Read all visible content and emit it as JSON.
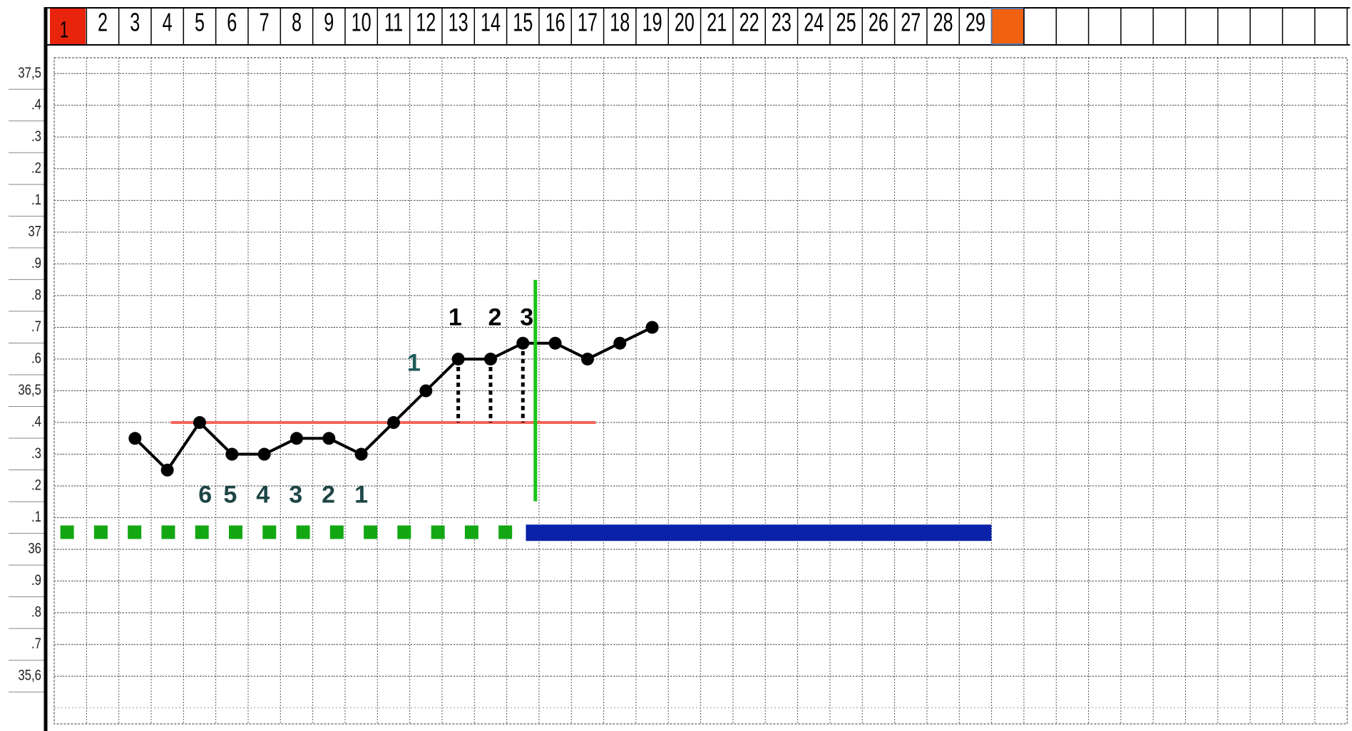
{
  "chart_data": {
    "type": "line",
    "categories": [
      "1",
      "2",
      "3",
      "4",
      "5",
      "6",
      "7",
      "8",
      "9",
      "10",
      "11",
      "12",
      "13",
      "14",
      "15",
      "16",
      "17",
      "18",
      "19",
      "20",
      "21",
      "22",
      "23",
      "24",
      "25",
      "26",
      "27",
      "28",
      "29"
    ],
    "series": [
      {
        "color": "#000000",
        "values": [
          null,
          null,
          36.35,
          36.25,
          36.4,
          36.3,
          36.3,
          36.35,
          36.35,
          36.3,
          36.4,
          36.5,
          36.6,
          36.6,
          36.65,
          36.65,
          36.6,
          36.65,
          36.7,
          null,
          null,
          null,
          null,
          null,
          null,
          null,
          null,
          null,
          null
        ]
      }
    ],
    "ylim": [
      35.45,
      37.55
    ],
    "yticks": [
      {
        "value": 37.5,
        "label": "37,5"
      },
      {
        "value": 37.4,
        "label": ".4"
      },
      {
        "value": 37.3,
        "label": ".3"
      },
      {
        "value": 37.2,
        "label": ".2"
      },
      {
        "value": 37.1,
        "label": ".1"
      },
      37,
      {
        "value": 36.9,
        "label": ".9"
      },
      {
        "value": 36.8,
        "label": ".8"
      },
      {
        "value": 36.7,
        "label": ".7"
      },
      {
        "value": 36.6,
        "label": ".6"
      },
      {
        "value": 36.5,
        "label": "36,5"
      },
      {
        "value": 36.4,
        "label": ".4"
      },
      {
        "value": 36.3,
        "label": ".3"
      },
      {
        "value": 36.2,
        "label": ".2"
      },
      {
        "value": 36.1,
        "label": ".1"
      },
      36,
      {
        "value": 35.9,
        "label": ".9"
      },
      {
        "value": 35.8,
        "label": ".8"
      },
      {
        "value": 35.7,
        "label": ".7"
      },
      {
        "value": 35.6,
        "label": "35,6"
      }
    ],
    "grid": true,
    "coverline": {
      "value": 36.4,
      "color": "#f2645a"
    },
    "annotations": [
      "1",
      "2",
      "3",
      "1",
      "6",
      "5",
      "4",
      "3",
      "2",
      "1"
    ]
  }
}
